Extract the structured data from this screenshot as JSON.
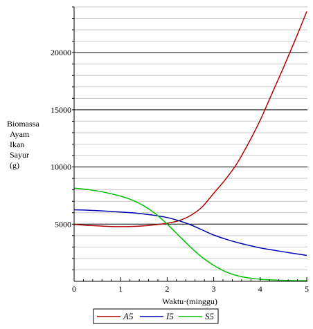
{
  "chart_data": {
    "type": "line",
    "title": "",
    "xlabel": "Waktu·(minggu)",
    "ylabel_lines": [
      "Biomassa",
      "Ayam",
      "Ikan",
      "Sayur",
      "(g)"
    ],
    "xlim": [
      0,
      5
    ],
    "ylim": [
      0,
      24000
    ],
    "x_ticks": [
      0,
      1,
      2,
      3,
      4,
      5
    ],
    "x_tick_labels": [
      "0",
      "1",
      "2",
      "3",
      "4",
      "5"
    ],
    "y_ticks": [
      5000,
      10000,
      15000,
      20000
    ],
    "y_tick_labels": [
      "5000",
      "10000",
      "15000",
      "20000"
    ],
    "y_major_grid_step": 5000,
    "y_minor_grid_step": 1000,
    "legend_position": "bottom",
    "x": [
      0,
      0.25,
      0.5,
      0.75,
      1.0,
      1.25,
      1.5,
      1.75,
      2.0,
      2.25,
      2.5,
      2.75,
      3.0,
      3.25,
      3.5,
      3.75,
      4.0,
      4.25,
      4.5,
      4.75,
      5.0
    ],
    "series": [
      {
        "name": "A5",
        "color": "#b00000",
        "values": [
          4980,
          4900,
          4850,
          4800,
          4780,
          4800,
          4850,
          4950,
          5080,
          5300,
          5750,
          6500,
          7700,
          8900,
          10300,
          12100,
          14100,
          16400,
          18700,
          21100,
          23600
        ]
      },
      {
        "name": "I5",
        "color": "#0000b0",
        "values": [
          6250,
          6230,
          6180,
          6120,
          6060,
          5990,
          5890,
          5760,
          5580,
          5300,
          4950,
          4500,
          4050,
          3700,
          3400,
          3150,
          2920,
          2750,
          2580,
          2420,
          2270
        ]
      },
      {
        "name": "S5",
        "color": "#00c000",
        "values": [
          8150,
          8050,
          7900,
          7700,
          7450,
          7100,
          6600,
          5900,
          5000,
          4000,
          3000,
          2100,
          1400,
          850,
          500,
          300,
          180,
          120,
          80,
          60,
          50
        ]
      }
    ]
  }
}
